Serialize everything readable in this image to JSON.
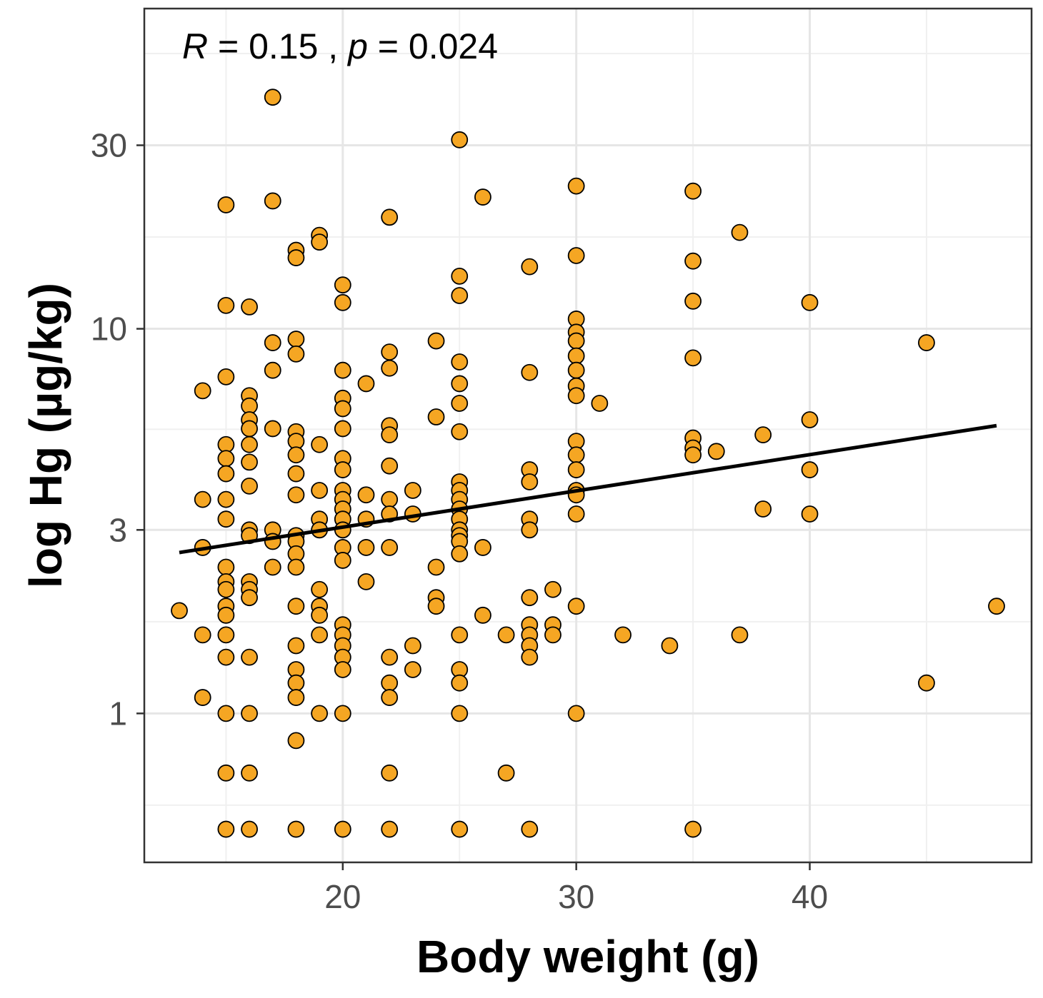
{
  "chart_data": {
    "type": "scatter",
    "title": "",
    "xlabel": "Body weight (g)",
    "ylabel": "log Hg (µg/kg)",
    "y_scale": "log10",
    "xlim": [
      11.5,
      49.5
    ],
    "ylim": [
      0.41,
      68
    ],
    "x_ticks": [
      20,
      30,
      40
    ],
    "x_tick_labels": [
      "20",
      "30",
      "40"
    ],
    "y_ticks": [
      1,
      3,
      10,
      30
    ],
    "y_tick_labels": [
      "1",
      "3",
      "10",
      "30"
    ],
    "grid": true,
    "annotation": {
      "r_symbol": "R",
      "r_text": " = 0.15 , ",
      "p_symbol": "p",
      "p_text": " = 0.024"
    },
    "regression_line": {
      "x": [
        13,
        48
      ],
      "y": [
        2.62,
        5.6
      ]
    },
    "point_color": "#f5a623",
    "point_stroke": "#000000",
    "line_color": "#000000",
    "points": [
      [
        13,
        1.85
      ],
      [
        14,
        6.9
      ],
      [
        14,
        3.6
      ],
      [
        14,
        2.7
      ],
      [
        14,
        1.6
      ],
      [
        14,
        1.1
      ],
      [
        15,
        7.5
      ],
      [
        15,
        21.0
      ],
      [
        15,
        11.5
      ],
      [
        15,
        5.0
      ],
      [
        15,
        4.6
      ],
      [
        15,
        4.2
      ],
      [
        15,
        3.6
      ],
      [
        15,
        3.2
      ],
      [
        15,
        2.4
      ],
      [
        15,
        2.2
      ],
      [
        15,
        2.1
      ],
      [
        15,
        1.9
      ],
      [
        15,
        1.8
      ],
      [
        15,
        1.6
      ],
      [
        15,
        1.4
      ],
      [
        15,
        1.0
      ],
      [
        15,
        0.7
      ],
      [
        15,
        0.5
      ],
      [
        16,
        11.4
      ],
      [
        16,
        6.7
      ],
      [
        16,
        6.3
      ],
      [
        16,
        5.8
      ],
      [
        16,
        5.5
      ],
      [
        16,
        5.0
      ],
      [
        16,
        4.5
      ],
      [
        16,
        3.9
      ],
      [
        16,
        3.0
      ],
      [
        16,
        2.9
      ],
      [
        16,
        2.2
      ],
      [
        16,
        2.1
      ],
      [
        16,
        2.0
      ],
      [
        16,
        1.4
      ],
      [
        16,
        1.0
      ],
      [
        16,
        0.7
      ],
      [
        16,
        0.5
      ],
      [
        17,
        40.0
      ],
      [
        17,
        21.5
      ],
      [
        17,
        9.2
      ],
      [
        17,
        7.8
      ],
      [
        17,
        5.5
      ],
      [
        17,
        3.0
      ],
      [
        17,
        2.8
      ],
      [
        17,
        2.4
      ],
      [
        18,
        16.0
      ],
      [
        18,
        15.3
      ],
      [
        18,
        9.4
      ],
      [
        18,
        8.6
      ],
      [
        18,
        5.4
      ],
      [
        18,
        5.1
      ],
      [
        18,
        4.7
      ],
      [
        18,
        4.2
      ],
      [
        18,
        3.7
      ],
      [
        18,
        2.9
      ],
      [
        18,
        2.8
      ],
      [
        18,
        2.6
      ],
      [
        18,
        2.4
      ],
      [
        18,
        1.9
      ],
      [
        18,
        1.5
      ],
      [
        18,
        1.3
      ],
      [
        18,
        1.2
      ],
      [
        18,
        1.1
      ],
      [
        18,
        0.85
      ],
      [
        18,
        0.5
      ],
      [
        19,
        17.5
      ],
      [
        19,
        16.8
      ],
      [
        19,
        5.0
      ],
      [
        19,
        3.8
      ],
      [
        19,
        3.2
      ],
      [
        19,
        3.0
      ],
      [
        19,
        2.1
      ],
      [
        19,
        1.9
      ],
      [
        19,
        1.8
      ],
      [
        19,
        1.6
      ],
      [
        19,
        1.0
      ],
      [
        20,
        13.0
      ],
      [
        20,
        11.7
      ],
      [
        20,
        7.8
      ],
      [
        20,
        6.6
      ],
      [
        20,
        6.2
      ],
      [
        20,
        5.5
      ],
      [
        20,
        4.6
      ],
      [
        20,
        4.3
      ],
      [
        20,
        3.8
      ],
      [
        20,
        3.6
      ],
      [
        20,
        3.4
      ],
      [
        20,
        3.2
      ],
      [
        20,
        3.0
      ],
      [
        20,
        2.7
      ],
      [
        20,
        2.5
      ],
      [
        20,
        1.7
      ],
      [
        20,
        1.6
      ],
      [
        20,
        1.5
      ],
      [
        20,
        1.4
      ],
      [
        20,
        1.3
      ],
      [
        20,
        1.0
      ],
      [
        20,
        0.5
      ],
      [
        21,
        7.2
      ],
      [
        21,
        3.7
      ],
      [
        21,
        3.2
      ],
      [
        21,
        2.7
      ],
      [
        21,
        2.2
      ],
      [
        22,
        19.5
      ],
      [
        22,
        8.7
      ],
      [
        22,
        7.9
      ],
      [
        22,
        5.6
      ],
      [
        22,
        5.3
      ],
      [
        22,
        4.4
      ],
      [
        22,
        3.6
      ],
      [
        22,
        3.3
      ],
      [
        22,
        2.7
      ],
      [
        22,
        1.4
      ],
      [
        22,
        1.2
      ],
      [
        22,
        1.1
      ],
      [
        22,
        0.7
      ],
      [
        22,
        0.5
      ],
      [
        23,
        3.8
      ],
      [
        23,
        3.3
      ],
      [
        23,
        1.5
      ],
      [
        23,
        1.3
      ],
      [
        24,
        9.3
      ],
      [
        24,
        5.9
      ],
      [
        24,
        2.4
      ],
      [
        24,
        2.0
      ],
      [
        24,
        1.9
      ],
      [
        25,
        31.0
      ],
      [
        25,
        13.7
      ],
      [
        25,
        12.2
      ],
      [
        25,
        8.2
      ],
      [
        25,
        7.2
      ],
      [
        25,
        6.4
      ],
      [
        25,
        5.4
      ],
      [
        25,
        4.0
      ],
      [
        25,
        3.8
      ],
      [
        25,
        3.6
      ],
      [
        25,
        3.4
      ],
      [
        25,
        3.2
      ],
      [
        25,
        3.0
      ],
      [
        25,
        2.9
      ],
      [
        25,
        2.8
      ],
      [
        25,
        2.6
      ],
      [
        25,
        1.6
      ],
      [
        25,
        1.3
      ],
      [
        25,
        1.2
      ],
      [
        25,
        1.0
      ],
      [
        25,
        0.5
      ],
      [
        26,
        22.0
      ],
      [
        26,
        2.7
      ],
      [
        26,
        1.8
      ],
      [
        27,
        1.6
      ],
      [
        27,
        0.7
      ],
      [
        28,
        14.5
      ],
      [
        28,
        7.7
      ],
      [
        28,
        4.3
      ],
      [
        28,
        4.0
      ],
      [
        28,
        3.2
      ],
      [
        28,
        3.0
      ],
      [
        28,
        2.0
      ],
      [
        28,
        1.7
      ],
      [
        28,
        1.6
      ],
      [
        28,
        1.5
      ],
      [
        28,
        1.4
      ],
      [
        28,
        0.5
      ],
      [
        29,
        2.1
      ],
      [
        29,
        1.7
      ],
      [
        29,
        1.6
      ],
      [
        30,
        23.5
      ],
      [
        30,
        15.5
      ],
      [
        30,
        10.6
      ],
      [
        30,
        9.8
      ],
      [
        30,
        9.3
      ],
      [
        30,
        8.5
      ],
      [
        30,
        7.8
      ],
      [
        30,
        7.1
      ],
      [
        30,
        6.7
      ],
      [
        30,
        5.1
      ],
      [
        30,
        4.7
      ],
      [
        30,
        4.3
      ],
      [
        30,
        3.8
      ],
      [
        30,
        3.7
      ],
      [
        30,
        3.3
      ],
      [
        30,
        1.9
      ],
      [
        30,
        1.0
      ],
      [
        31,
        6.4
      ],
      [
        32,
        1.6
      ],
      [
        34,
        1.5
      ],
      [
        35,
        22.8
      ],
      [
        35,
        15.0
      ],
      [
        35,
        11.8
      ],
      [
        35,
        8.4
      ],
      [
        35,
        5.2
      ],
      [
        35,
        4.9
      ],
      [
        35,
        4.7
      ],
      [
        35,
        0.5
      ],
      [
        36,
        4.8
      ],
      [
        37,
        17.8
      ],
      [
        37,
        1.6
      ],
      [
        38,
        5.3
      ],
      [
        38,
        3.4
      ],
      [
        40,
        11.7
      ],
      [
        40,
        5.8
      ],
      [
        40,
        4.3
      ],
      [
        40,
        3.3
      ],
      [
        45,
        9.2
      ],
      [
        45,
        1.2
      ],
      [
        48,
        1.9
      ]
    ]
  }
}
